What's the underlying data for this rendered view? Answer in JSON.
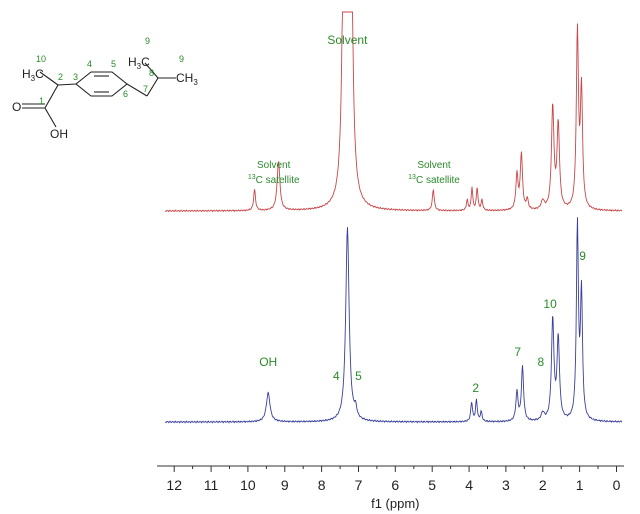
{
  "chart_data": {
    "type": "line",
    "xlabel": "f1 (ppm)",
    "xlim": [
      12.25,
      -0.15
    ],
    "x_ticks": [
      12,
      11,
      10,
      9,
      8,
      7,
      6,
      5,
      4,
      3,
      2,
      1,
      0
    ],
    "series": [
      {
        "color": "#c8474a",
        "peaks": [
          {
            "ppm": 9.82,
            "h": 0.12,
            "w": 0.03
          },
          {
            "ppm": 9.17,
            "h": 0.28,
            "w": 0.045
          },
          {
            "ppm": 7.38,
            "h": 2.5,
            "w": 0.05
          },
          {
            "ppm": 7.22,
            "h": 2.5,
            "w": 0.05
          },
          {
            "ppm": 4.97,
            "h": 0.12,
            "w": 0.03
          },
          {
            "ppm": 4.05,
            "h": 0.06,
            "w": 0.025
          },
          {
            "ppm": 3.92,
            "h": 0.13,
            "w": 0.025
          },
          {
            "ppm": 3.78,
            "h": 0.13,
            "w": 0.025
          },
          {
            "ppm": 3.65,
            "h": 0.06,
            "w": 0.025
          },
          {
            "ppm": 2.7,
            "h": 0.2,
            "w": 0.035
          },
          {
            "ppm": 2.58,
            "h": 0.32,
            "w": 0.035
          },
          {
            "ppm": 2.42,
            "h": 0.06,
            "w": 0.03
          },
          {
            "ppm": 2.0,
            "h": 0.05,
            "w": 0.05
          },
          {
            "ppm": 1.73,
            "h": 0.58,
            "w": 0.04
          },
          {
            "ppm": 1.58,
            "h": 0.48,
            "w": 0.04
          },
          {
            "ppm": 1.06,
            "h": 1.0,
            "w": 0.035
          },
          {
            "ppm": 0.95,
            "h": 0.67,
            "w": 0.035
          }
        ]
      },
      {
        "color": "#3a3f9c",
        "peaks": [
          {
            "ppm": 9.45,
            "h": 0.15,
            "w": 0.06
          },
          {
            "ppm": 7.3,
            "h": 1.0,
            "w": 0.055
          },
          {
            "ppm": 7.08,
            "h": 0.05,
            "w": 0.04
          },
          {
            "ppm": 3.93,
            "h": 0.1,
            "w": 0.028
          },
          {
            "ppm": 3.8,
            "h": 0.11,
            "w": 0.028
          },
          {
            "ppm": 3.67,
            "h": 0.05,
            "w": 0.028
          },
          {
            "ppm": 2.7,
            "h": 0.15,
            "w": 0.035
          },
          {
            "ppm": 2.55,
            "h": 0.28,
            "w": 0.035
          },
          {
            "ppm": 2.0,
            "h": 0.04,
            "w": 0.05
          },
          {
            "ppm": 1.73,
            "h": 0.52,
            "w": 0.04
          },
          {
            "ppm": 1.58,
            "h": 0.42,
            "w": 0.04
          },
          {
            "ppm": 1.06,
            "h": 1.0,
            "w": 0.033
          },
          {
            "ppm": 0.95,
            "h": 0.65,
            "w": 0.033
          }
        ]
      }
    ],
    "annotations_red": [
      {
        "text": "Solvent",
        "ppm": 7.3
      },
      {
        "text": "Solvent",
        "ppm": 9.3
      },
      {
        "sup": "13",
        "text": "C satellite",
        "ppm": 9.3
      },
      {
        "text": "Solvent",
        "ppm": 4.95
      },
      {
        "sup": "13",
        "text": "C satellite",
        "ppm": 4.95
      }
    ],
    "annotations_blue": [
      {
        "text": "OH",
        "ppm": 9.45
      },
      {
        "text": "4",
        "ppm": 7.6
      },
      {
        "text": "5",
        "ppm": 7.0
      },
      {
        "text": "2",
        "ppm": 3.82
      },
      {
        "text": "7",
        "ppm": 2.68
      },
      {
        "text": "8",
        "ppm": 2.05
      },
      {
        "text": "10",
        "ppm": 1.8
      },
      {
        "text": "9",
        "ppm": 0.92
      }
    ],
    "annotation_color": "#2b8a2b"
  },
  "molecule": {
    "methyl_left": "H",
    "methyl_left_sub": "3",
    "methyl_left_c": "C",
    "methyl_right_h": "H",
    "methyl_right_sub": "3",
    "methyl_right_c": "C",
    "methyl_ch3": "CH",
    "methyl_ch3_sub": "3",
    "carbonyl_o": "O",
    "hydroxyl": "OH",
    "atom_numbers": [
      "10",
      "2",
      "1",
      "3",
      "4",
      "5",
      "6",
      "7",
      "8",
      "9",
      "9"
    ]
  }
}
